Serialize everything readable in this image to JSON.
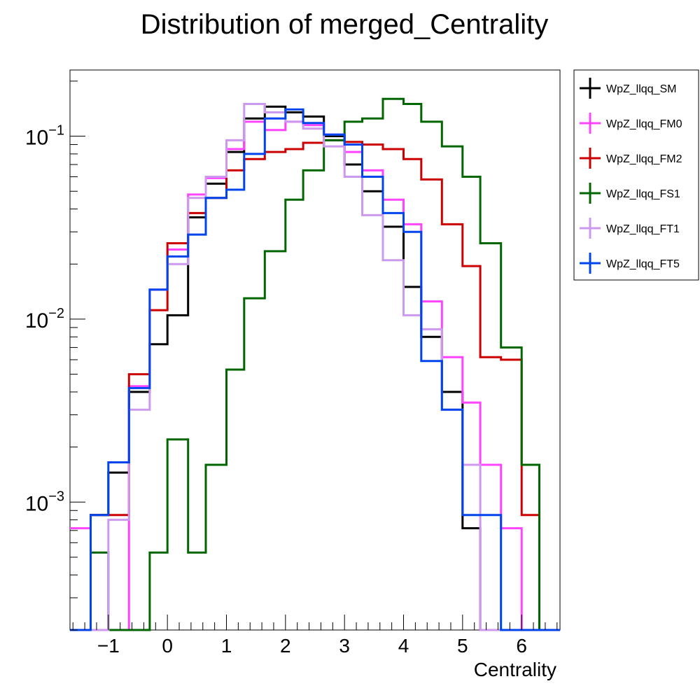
{
  "chart_data": {
    "type": "histogram-step",
    "title": "Distribution of merged_Centrality",
    "xlabel": "Centrality",
    "ylabel": "",
    "yscale": "log",
    "xlim": [
      -1.65,
      6.65
    ],
    "ylim": [
      0.0002,
      0.23
    ],
    "x_ticks": [
      {
        "value": -1,
        "label": "−1"
      },
      {
        "value": 0,
        "label": "0"
      },
      {
        "value": 1,
        "label": "1"
      },
      {
        "value": 2,
        "label": "2"
      },
      {
        "value": 3,
        "label": "3"
      },
      {
        "value": 4,
        "label": "4"
      },
      {
        "value": 5,
        "label": "5"
      },
      {
        "value": 6,
        "label": "6"
      }
    ],
    "y_ticks": [
      {
        "value": 0.1,
        "base": "10",
        "exp": "−1"
      },
      {
        "value": 0.01,
        "base": "10",
        "exp": "−2"
      },
      {
        "value": 0.001,
        "base": "10",
        "exp": "−3"
      }
    ],
    "legend_position": "outside-right-top",
    "bin_edges": [
      -1.65,
      -1.3,
      -1.0,
      -0.65,
      -0.3,
      0.0,
      0.35,
      0.65,
      1.0,
      1.3,
      1.65,
      2.0,
      2.3,
      2.65,
      3.0,
      3.3,
      3.65,
      4.0,
      4.3,
      4.65,
      5.0,
      5.3,
      5.65,
      6.0,
      6.3,
      6.65
    ],
    "series": [
      {
        "name": "WpZ_llqq_SM",
        "color": "#000000",
        "values": [
          0,
          0.00085,
          0.00145,
          0.004,
          0.0073,
          0.0105,
          0.036,
          0.055,
          0.082,
          0.125,
          0.145,
          0.135,
          0.128,
          0.1,
          0.07,
          0.05,
          0.032,
          0.015,
          0.008,
          0.004,
          0.00072,
          0,
          0,
          0,
          0
        ]
      },
      {
        "name": "WpZ_llqq_FM0",
        "color": "#ff44ff",
        "values": [
          0.00072,
          0,
          0,
          0.0043,
          0.0145,
          0.024,
          0.048,
          0.059,
          0.085,
          0.12,
          0.108,
          0.12,
          0.115,
          0.102,
          0.082,
          0.065,
          0.045,
          0.033,
          0.0125,
          0.0062,
          0.0035,
          0.0016,
          0.00072,
          0,
          0
        ]
      },
      {
        "name": "WpZ_llqq_FM2",
        "color": "#cc0000",
        "values": [
          0,
          0.00085,
          0.00085,
          0.005,
          0.0112,
          0.026,
          0.038,
          0.046,
          0.065,
          0.075,
          0.082,
          0.085,
          0.092,
          0.095,
          0.093,
          0.09,
          0.085,
          0.075,
          0.058,
          0.033,
          0.0195,
          0.0062,
          0.006,
          0.00085,
          0
        ]
      },
      {
        "name": "WpZ_llqq_FS1",
        "color": "#006600",
        "values": [
          0,
          0.00053,
          0,
          0,
          0.00053,
          0.0022,
          0.00053,
          0.0016,
          0.0053,
          0.013,
          0.0235,
          0.045,
          0.065,
          0.095,
          0.12,
          0.125,
          0.16,
          0.15,
          0.12,
          0.088,
          0.06,
          0.026,
          0.007,
          0.0016,
          0
        ]
      },
      {
        "name": "WpZ_llqq_FT1",
        "color": "#cc99ee",
        "values": [
          0,
          0,
          0.0008,
          0.0032,
          0.0145,
          0.02,
          0.046,
          0.06,
          0.095,
          0.15,
          0.135,
          0.12,
          0.11,
          0.088,
          0.06,
          0.037,
          0.021,
          0.0105,
          0.0088,
          0.0032,
          0.0016,
          0,
          0,
          0,
          0
        ]
      },
      {
        "name": "WpZ_llqq_FT5",
        "color": "#0044ee",
        "values": [
          0,
          0.00085,
          0.00165,
          0.0042,
          0.0145,
          0.022,
          0.029,
          0.046,
          0.051,
          0.08,
          0.125,
          0.14,
          0.118,
          0.102,
          0.09,
          0.06,
          0.038,
          0.03,
          0.0059,
          0.0032,
          0.00085,
          0.00085,
          0,
          0,
          0
        ]
      }
    ]
  }
}
